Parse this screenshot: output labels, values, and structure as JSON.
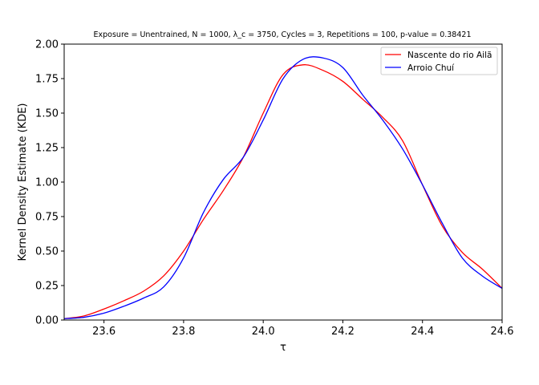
{
  "chart_data": {
    "type": "line",
    "title": "Exposure = Unentrained, N = 1000, λ_c = 3750, Cycles = 3, Repetitions = 100, p-value = 0.38421",
    "xlabel": "τ",
    "ylabel": "Kernel Density Estimate (KDE)",
    "xlim": [
      23.5,
      24.6
    ],
    "ylim": [
      0.0,
      2.0
    ],
    "xticks": [
      "23.6",
      "23.8",
      "24.0",
      "24.2",
      "24.4",
      "24.6"
    ],
    "yticks": [
      "0.00",
      "0.25",
      "0.50",
      "0.75",
      "1.00",
      "1.25",
      "1.50",
      "1.75",
      "2.00"
    ],
    "grid": false,
    "legend_position": "top-right",
    "series": [
      {
        "name": "Nascente do rio Ailã",
        "color": "#ff0000",
        "x": [
          23.5,
          23.55,
          23.6,
          23.65,
          23.7,
          23.75,
          23.8,
          23.85,
          23.9,
          23.95,
          24.0,
          24.05,
          24.1,
          24.15,
          24.2,
          24.25,
          24.3,
          24.35,
          24.4,
          24.45,
          24.5,
          24.55,
          24.6
        ],
        "y": [
          0.01,
          0.03,
          0.08,
          0.14,
          0.21,
          0.32,
          0.5,
          0.73,
          0.94,
          1.18,
          1.5,
          1.78,
          1.85,
          1.81,
          1.73,
          1.6,
          1.47,
          1.3,
          0.98,
          0.68,
          0.49,
          0.37,
          0.23
        ]
      },
      {
        "name": "Arroio Chuí",
        "color": "#0000ff",
        "x": [
          23.5,
          23.55,
          23.6,
          23.65,
          23.7,
          23.75,
          23.8,
          23.85,
          23.9,
          23.95,
          24.0,
          24.05,
          24.1,
          24.15,
          24.2,
          24.25,
          24.3,
          24.35,
          24.4,
          24.45,
          24.5,
          24.55,
          24.6
        ],
        "y": [
          0.01,
          0.02,
          0.05,
          0.1,
          0.16,
          0.24,
          0.45,
          0.78,
          1.02,
          1.18,
          1.45,
          1.75,
          1.89,
          1.9,
          1.83,
          1.63,
          1.45,
          1.24,
          0.98,
          0.7,
          0.45,
          0.32,
          0.23
        ]
      }
    ]
  }
}
